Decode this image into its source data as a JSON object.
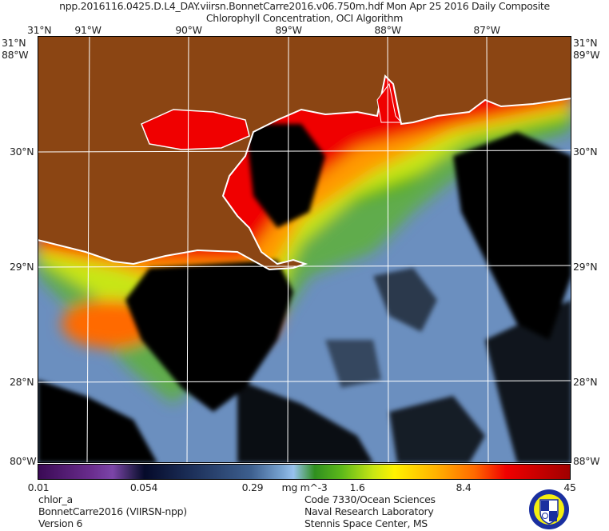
{
  "title": {
    "line1": "npp.2016116.0425.D.L4_DAY.viirsn.BonnetCarre2016.v06.750m.hdf    Mon Apr 25 2016 Daily Composite",
    "line2": "Chlorophyll Concentration, OCI Algorithm"
  },
  "axes": {
    "top_lon": [
      "91°W",
      "90°W",
      "89°W",
      "88°W",
      "87°W"
    ],
    "left_lat": [
      "30°N",
      "29°N",
      "28°N"
    ],
    "right_lat": [
      "30°N",
      "29°N",
      "28°N"
    ],
    "corner_top_left": "31°N",
    "corner_left_overlap": [
      "31°N",
      "88°W"
    ],
    "corner_right_overlap": [
      "31°N",
      "89°W"
    ],
    "corner_bottom_left": "80°W",
    "corner_bottom_right": "88°W"
  },
  "colorbar": {
    "ticks": [
      "0.01",
      "0.054",
      "0.29",
      "1.6",
      "8.4",
      "45"
    ],
    "units": "mg m^-3",
    "scale": "log",
    "range": [
      0.01,
      45
    ]
  },
  "footer": {
    "left": [
      "chlor_a",
      "BonnetCarre2016 (VIIRSN-npp)",
      "Version 6"
    ],
    "right": [
      "Code 7330/Ocean Sciences",
      "Naval Research Laboratory",
      "Stennis Space Center, MS"
    ],
    "seal": "Naval Research Laboratory Stennis Space Center"
  },
  "colors": {
    "land": "#8b4513",
    "cloud": "#000000",
    "coast": "#ffffff"
  }
}
